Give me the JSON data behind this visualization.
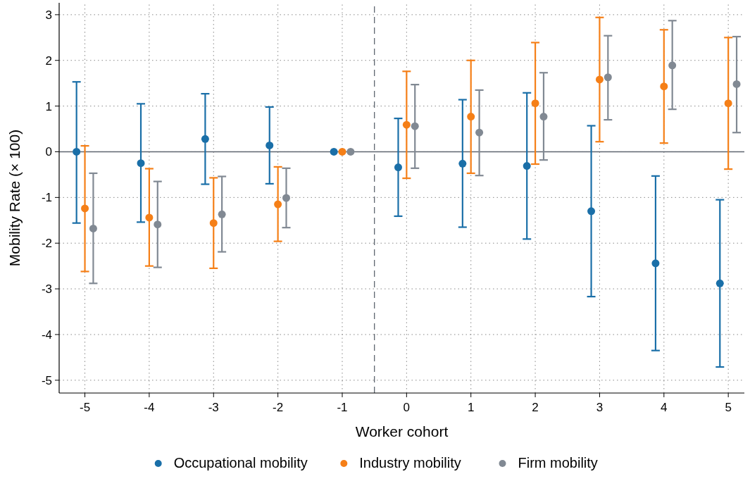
{
  "chart_data": {
    "type": "scatter",
    "xlabel": "Worker cohort",
    "ylabel": "Mobility Rate (× 100)",
    "xlim": [
      -5.4,
      5.25
    ],
    "xticks": [
      -5,
      -4,
      -3,
      -2,
      -1,
      0,
      1,
      2,
      3,
      4,
      5
    ],
    "ylim": [
      -5.28,
      3.26
    ],
    "yticks": [
      -5,
      -4,
      -3,
      -2,
      -1,
      0,
      1,
      2,
      3
    ],
    "grid": true,
    "legend": "bottom",
    "marker": "circle",
    "ref_lines": [
      {
        "axis": "y",
        "value": 0,
        "color": "#5f6670",
        "line_style": "solid"
      },
      {
        "axis": "x",
        "value": -0.5,
        "color": "#5f6670",
        "line_style": "dashed"
      }
    ],
    "series": [
      {
        "name": "Occupational mobility",
        "color": "#1a6fa8",
        "x": [
          -5.13,
          -4.13,
          -3.13,
          -2.13,
          -1.13,
          -0.13,
          0.87,
          1.87,
          2.87,
          3.87,
          4.87
        ],
        "values": [
          0,
          -0.25,
          0.28,
          0.14,
          0,
          -0.34,
          -0.26,
          -0.31,
          -1.3,
          -2.44,
          -2.88
        ],
        "errors": [
          [
            -1.56,
            1.53
          ],
          [
            -1.54,
            1.05
          ],
          [
            -0.71,
            1.27
          ],
          [
            -0.7,
            0.98
          ],
          null,
          [
            -1.41,
            0.73
          ],
          [
            -1.65,
            1.14
          ],
          [
            -1.91,
            1.29
          ],
          [
            -3.17,
            0.57
          ],
          [
            -4.35,
            -0.53
          ],
          [
            -4.71,
            -1.05
          ]
        ]
      },
      {
        "name": "Industry mobility",
        "color": "#f57f17",
        "x": [
          -5,
          -4,
          -3,
          -2,
          -1,
          0,
          1,
          2,
          3,
          4,
          5
        ],
        "values": [
          -1.24,
          -1.44,
          -1.56,
          -1.15,
          0,
          0.59,
          0.77,
          1.06,
          1.58,
          1.43,
          1.06
        ],
        "errors": [
          [
            -2.62,
            0.13
          ],
          [
            -2.5,
            -0.37
          ],
          [
            -2.55,
            -0.57
          ],
          [
            -1.96,
            -0.33
          ],
          null,
          [
            -0.58,
            1.76
          ],
          [
            -0.47,
            2.0
          ],
          [
            -0.27,
            2.39
          ],
          [
            0.22,
            2.94
          ],
          [
            0.19,
            2.67
          ],
          [
            -0.38,
            2.5
          ]
        ]
      },
      {
        "name": "Firm mobility",
        "color": "#818993",
        "x": [
          -4.87,
          -3.87,
          -2.87,
          -1.87,
          -0.87,
          0.13,
          1.13,
          2.13,
          3.13,
          4.13,
          5.13
        ],
        "values": [
          -1.68,
          -1.59,
          -1.37,
          -1.01,
          0,
          0.56,
          0.42,
          0.77,
          1.63,
          1.89,
          1.48
        ],
        "errors": [
          [
            -2.88,
            -0.47
          ],
          [
            -2.53,
            -0.65
          ],
          [
            -2.19,
            -0.54
          ],
          [
            -1.66,
            -0.36
          ],
          null,
          [
            -0.36,
            1.47
          ],
          [
            -0.52,
            1.35
          ],
          [
            -0.18,
            1.73
          ],
          [
            0.7,
            2.54
          ],
          [
            0.93,
            2.87
          ],
          [
            0.42,
            2.52
          ]
        ]
      }
    ]
  }
}
